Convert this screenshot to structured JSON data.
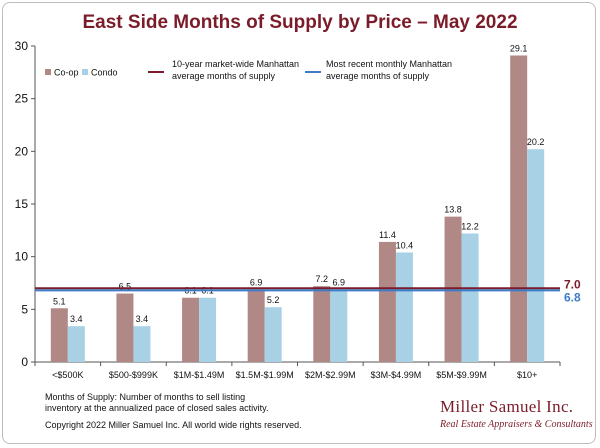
{
  "chart_data": {
    "type": "bar",
    "title": "East Side Months of Supply by Price – May 2022",
    "categories": [
      "<$500K",
      "$500-$999K",
      "$1M-$1.49M",
      "$1.5M-$1.99M",
      "$2M-$2.99M",
      "$3M-$4.99M",
      "$5M-$9.99M",
      "$10+"
    ],
    "series": [
      {
        "name": "Co-op",
        "color": "#b08885",
        "values": [
          5.1,
          6.5,
          6.1,
          6.9,
          7.2,
          11.4,
          13.8,
          29.1
        ],
        "labels": [
          "5.1",
          "6.5",
          "6.1",
          "6.9",
          "7.2",
          "11.4",
          "13.8",
          "29.1"
        ]
      },
      {
        "name": "Condo",
        "color": "#a9d1e6",
        "values": [
          3.4,
          3.4,
          6.1,
          5.2,
          6.9,
          10.4,
          12.2,
          20.2
        ],
        "labels": [
          "3.4",
          "3.4",
          "6.1",
          "5.2",
          "6.9",
          "10.4",
          "12.2",
          "20.2"
        ]
      }
    ],
    "ylim": [
      0,
      30
    ],
    "yticks": [
      "0",
      "5",
      "10",
      "15",
      "20",
      "25",
      "30"
    ],
    "reference_lines": [
      {
        "name": "10-year market-wide Manhattan average months of supply",
        "legend_line1": "10-year  market-wide Manhattan",
        "legend_line2": "average months of supply",
        "value": 7.0,
        "label": "7.0",
        "color": "#7b1c2a"
      },
      {
        "name": "Most recent monthly Manhattan average months of supply",
        "legend_line1": "Most recent monthly Manhattan",
        "legend_line2": "average months of supply",
        "value": 6.8,
        "label": "6.8",
        "color": "#3d7cc9"
      }
    ],
    "grid": false
  },
  "footnote": {
    "line1": "Months of Supply: Number of months to sell listing",
    "line2": "inventory at the annualized pace of closed sales activity.",
    "copyright": "Copyright 2022 Miller Samuel Inc.  All world wide rights reserved."
  },
  "logo": {
    "name": "Miller Samuel Inc.",
    "tagline": "Real Estate Appraisers & Consultants"
  }
}
